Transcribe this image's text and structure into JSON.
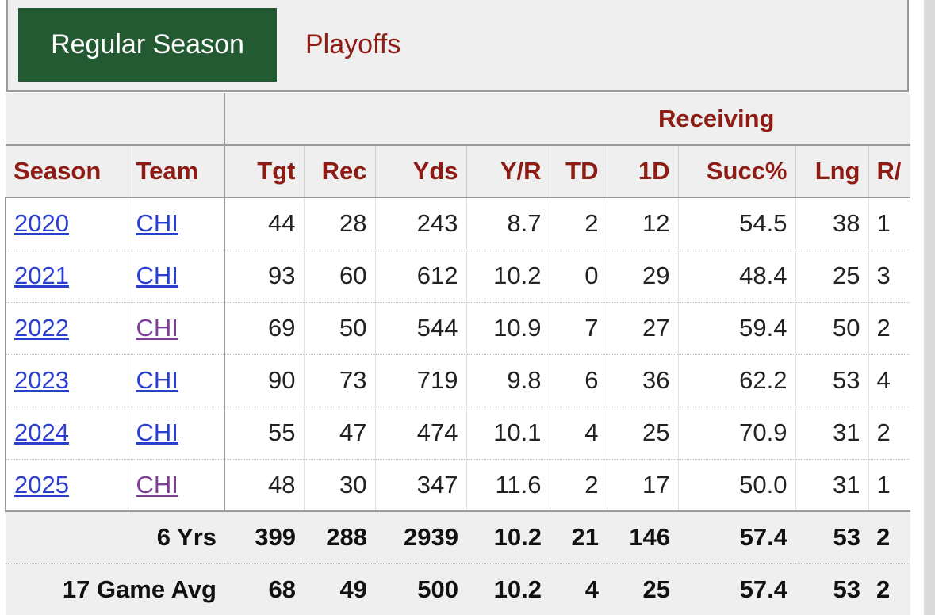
{
  "tabs": [
    {
      "label": "Regular Season",
      "active": true
    },
    {
      "label": "Playoffs",
      "active": false
    }
  ],
  "table": {
    "group_header": "Receiving",
    "columns": [
      "Season",
      "Team",
      "Tgt",
      "Rec",
      "Yds",
      "Y/R",
      "TD",
      "1D",
      "Succ%",
      "Lng",
      "R/"
    ],
    "rows": [
      {
        "season": "2020",
        "team": "CHI",
        "tgt": "44",
        "rec": "28",
        "yds": "243",
        "yr": "8.7",
        "td": "2",
        "fd": "12",
        "succ": "54.5",
        "lng": "38",
        "rg": "1"
      },
      {
        "season": "2021",
        "team": "CHI",
        "tgt": "93",
        "rec": "60",
        "yds": "612",
        "yr": "10.2",
        "td": "0",
        "fd": "29",
        "succ": "48.4",
        "lng": "25",
        "rg": "3"
      },
      {
        "season": "2022",
        "team": "CHI",
        "tgt": "69",
        "rec": "50",
        "yds": "544",
        "yr": "10.9",
        "td": "7",
        "fd": "27",
        "succ": "59.4",
        "lng": "50",
        "rg": "2"
      },
      {
        "season": "2023",
        "team": "CHI",
        "tgt": "90",
        "rec": "73",
        "yds": "719",
        "yr": "9.8",
        "td": "6",
        "fd": "36",
        "succ": "62.2",
        "lng": "53",
        "rg": "4"
      },
      {
        "season": "2024",
        "team": "CHI",
        "tgt": "55",
        "rec": "47",
        "yds": "474",
        "yr": "10.1",
        "td": "4",
        "fd": "25",
        "succ": "70.9",
        "lng": "31",
        "rg": "2"
      },
      {
        "season": "2025",
        "team": "CHI",
        "tgt": "48",
        "rec": "30",
        "yds": "347",
        "yr": "11.6",
        "td": "2",
        "fd": "17",
        "succ": "50.0",
        "lng": "31",
        "rg": "1"
      }
    ],
    "footer": [
      {
        "label": "6 Yrs",
        "tgt": "399",
        "rec": "288",
        "yds": "2939",
        "yr": "10.2",
        "td": "21",
        "fd": "146",
        "succ": "57.4",
        "lng": "53",
        "rg": "2"
      },
      {
        "label": "17 Game Avg",
        "tgt": "68",
        "rec": "49",
        "yds": "500",
        "yr": "10.2",
        "td": "4",
        "fd": "25",
        "succ": "57.4",
        "lng": "53",
        "rg": "2"
      }
    ]
  },
  "colors": {
    "active_tab_bg": "#235a31",
    "header_text": "#8e1c14",
    "link": "#2b3fcf",
    "visited_link": "#7d3f97"
  }
}
